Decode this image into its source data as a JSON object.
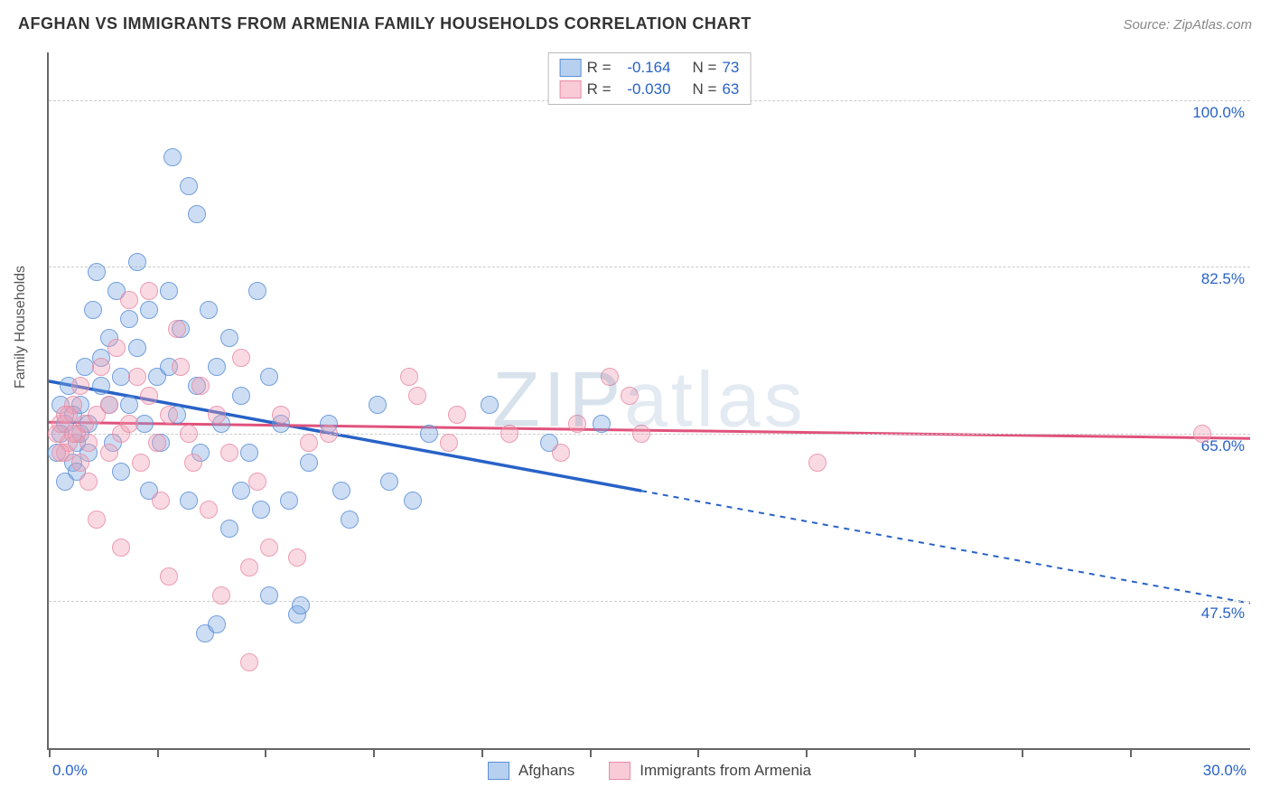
{
  "title": "AFGHAN VS IMMIGRANTS FROM ARMENIA FAMILY HOUSEHOLDS CORRELATION CHART",
  "source": "Source: ZipAtlas.com",
  "ylabel": "Family Households",
  "watermark_bold": "ZIP",
  "watermark_thin": "atlas",
  "chart": {
    "type": "scatter",
    "xlim": [
      0,
      30
    ],
    "ylim": [
      32,
      105
    ],
    "x_tick_positions_pct": [
      0,
      9,
      18,
      27,
      36,
      45,
      54,
      63,
      72,
      81,
      90
    ],
    "x_min_label": "0.0%",
    "x_max_label": "30.0%",
    "y_gridlines": [
      {
        "value": 47.5,
        "label": "47.5%"
      },
      {
        "value": 65.0,
        "label": "65.0%"
      },
      {
        "value": 82.5,
        "label": "82.5%"
      },
      {
        "value": 100.0,
        "label": "100.0%"
      }
    ],
    "colors": {
      "blue_fill": "rgba(124,169,227,0.45)",
      "blue_stroke": "#5b8fd6",
      "blue_line": "#2862c7",
      "pink_fill": "rgba(242,160,180,0.45)",
      "pink_stroke": "#e88ba6",
      "pink_line": "#e0527c",
      "grid": "#cccccc",
      "axis": "#666666",
      "label_blue": "#2862c7"
    },
    "series": [
      {
        "key": "blue",
        "name": "Afghans",
        "R": "-0.164",
        "N": "73",
        "trend": {
          "x1": 0,
          "y1": 70.5,
          "x2_solid": 14.8,
          "y2_solid": 59.0,
          "x2_dash": 30,
          "y2_dash": 47.2
        },
        "points": [
          [
            0.2,
            63
          ],
          [
            0.3,
            68
          ],
          [
            0.3,
            65
          ],
          [
            0.4,
            60
          ],
          [
            0.4,
            66
          ],
          [
            0.5,
            70
          ],
          [
            0.6,
            62
          ],
          [
            0.6,
            67
          ],
          [
            0.7,
            64
          ],
          [
            0.7,
            61
          ],
          [
            0.8,
            68
          ],
          [
            0.8,
            65
          ],
          [
            0.9,
            72
          ],
          [
            1.0,
            66
          ],
          [
            1.0,
            63
          ],
          [
            1.1,
            78
          ],
          [
            1.2,
            82
          ],
          [
            1.3,
            70
          ],
          [
            1.3,
            73
          ],
          [
            1.5,
            68
          ],
          [
            1.5,
            75
          ],
          [
            1.6,
            64
          ],
          [
            1.7,
            80
          ],
          [
            1.8,
            71
          ],
          [
            1.8,
            61
          ],
          [
            2.0,
            77
          ],
          [
            2.0,
            68
          ],
          [
            2.2,
            74
          ],
          [
            2.2,
            83
          ],
          [
            2.4,
            66
          ],
          [
            2.5,
            78
          ],
          [
            2.5,
            59
          ],
          [
            2.7,
            71
          ],
          [
            2.8,
            64
          ],
          [
            3.0,
            80
          ],
          [
            3.0,
            72
          ],
          [
            3.1,
            94
          ],
          [
            3.2,
            67
          ],
          [
            3.3,
            76
          ],
          [
            3.5,
            91
          ],
          [
            3.5,
            58
          ],
          [
            3.7,
            70
          ],
          [
            3.7,
            88
          ],
          [
            3.8,
            63
          ],
          [
            3.9,
            44
          ],
          [
            4.0,
            78
          ],
          [
            4.2,
            72
          ],
          [
            4.2,
            45
          ],
          [
            4.3,
            66
          ],
          [
            4.5,
            55
          ],
          [
            4.5,
            75
          ],
          [
            4.8,
            69
          ],
          [
            4.8,
            59
          ],
          [
            5.0,
            63
          ],
          [
            5.2,
            80
          ],
          [
            5.3,
            57
          ],
          [
            5.5,
            71
          ],
          [
            5.5,
            48
          ],
          [
            5.8,
            66
          ],
          [
            6.0,
            58
          ],
          [
            6.2,
            46
          ],
          [
            6.3,
            47
          ],
          [
            6.5,
            62
          ],
          [
            7.0,
            66
          ],
          [
            7.3,
            59
          ],
          [
            7.5,
            56
          ],
          [
            8.2,
            68
          ],
          [
            8.5,
            60
          ],
          [
            9.1,
            58
          ],
          [
            9.5,
            65
          ],
          [
            11.0,
            68
          ],
          [
            12.5,
            64
          ],
          [
            13.8,
            66
          ]
        ]
      },
      {
        "key": "pink",
        "name": "Immigrants from Armenia",
        "R": "-0.030",
        "N": "63",
        "trend": {
          "x1": 0,
          "y1": 66.2,
          "x2_solid": 30,
          "y2_solid": 64.5,
          "x2_dash": 30,
          "y2_dash": 64.5
        },
        "points": [
          [
            0.2,
            65
          ],
          [
            0.3,
            66
          ],
          [
            0.4,
            63
          ],
          [
            0.5,
            67
          ],
          [
            0.5,
            64
          ],
          [
            0.6,
            68
          ],
          [
            0.7,
            65
          ],
          [
            0.8,
            62
          ],
          [
            0.8,
            70
          ],
          [
            0.9,
            66
          ],
          [
            1.0,
            60
          ],
          [
            1.0,
            64
          ],
          [
            1.2,
            67
          ],
          [
            1.2,
            56
          ],
          [
            1.3,
            72
          ],
          [
            1.5,
            63
          ],
          [
            1.5,
            68
          ],
          [
            1.7,
            74
          ],
          [
            1.8,
            65
          ],
          [
            1.8,
            53
          ],
          [
            2.0,
            79
          ],
          [
            2.0,
            66
          ],
          [
            2.2,
            71
          ],
          [
            2.3,
            62
          ],
          [
            2.5,
            69
          ],
          [
            2.5,
            80
          ],
          [
            2.7,
            64
          ],
          [
            2.8,
            58
          ],
          [
            3.0,
            67
          ],
          [
            3.0,
            50
          ],
          [
            3.2,
            76
          ],
          [
            3.3,
            72
          ],
          [
            3.5,
            65
          ],
          [
            3.6,
            62
          ],
          [
            3.8,
            70
          ],
          [
            4.0,
            57
          ],
          [
            4.2,
            67
          ],
          [
            4.3,
            48
          ],
          [
            4.5,
            63
          ],
          [
            4.8,
            73
          ],
          [
            5.0,
            51
          ],
          [
            5.0,
            41
          ],
          [
            5.2,
            60
          ],
          [
            5.5,
            53
          ],
          [
            5.8,
            67
          ],
          [
            6.2,
            52
          ],
          [
            6.5,
            64
          ],
          [
            7.0,
            65
          ],
          [
            9.0,
            71
          ],
          [
            9.2,
            69
          ],
          [
            10.0,
            64
          ],
          [
            10.2,
            67
          ],
          [
            11.5,
            65
          ],
          [
            12.8,
            63
          ],
          [
            13.2,
            66
          ],
          [
            14.0,
            71
          ],
          [
            14.5,
            69
          ],
          [
            14.8,
            65
          ],
          [
            19.2,
            62
          ],
          [
            28.8,
            65
          ],
          [
            0.3,
            63
          ],
          [
            0.4,
            67
          ],
          [
            0.6,
            65
          ]
        ]
      }
    ],
    "stats_box": {
      "r_label": "R =",
      "n_label": "N ="
    }
  }
}
